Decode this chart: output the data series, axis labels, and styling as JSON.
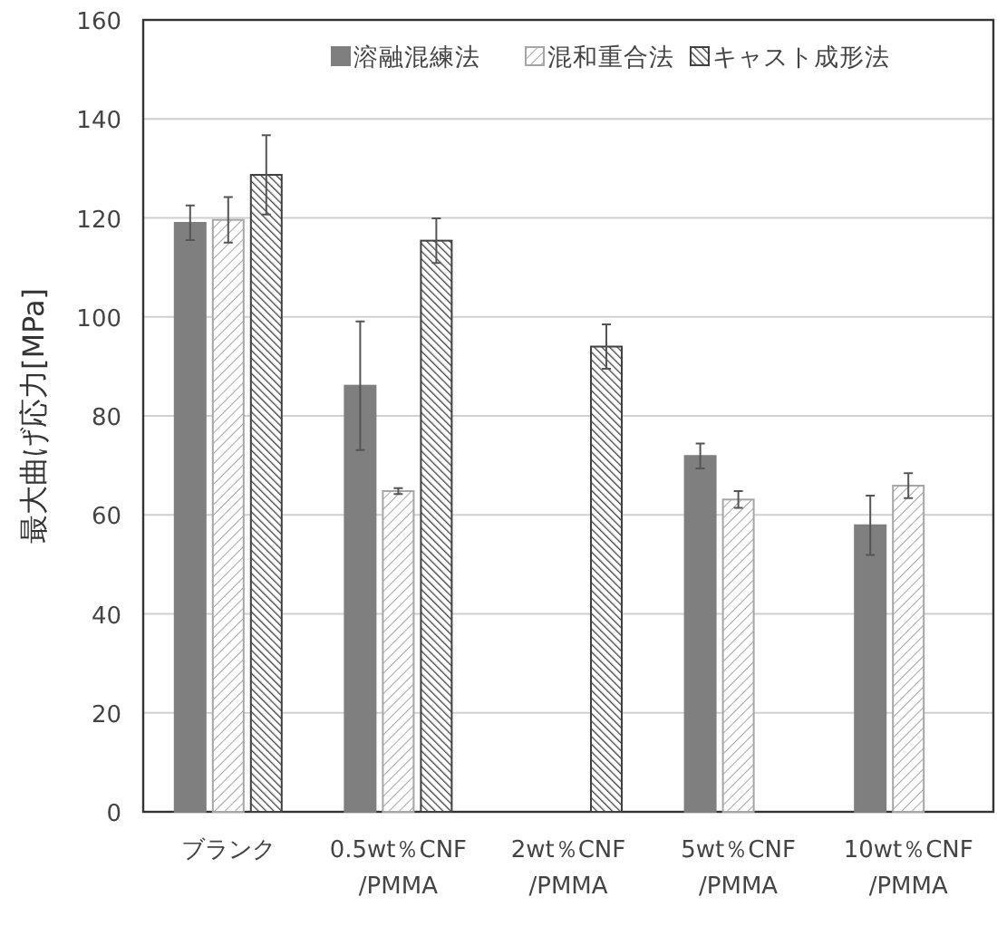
{
  "chart_data": {
    "type": "bar",
    "ylabel": "最大曲げ応力[MPa]",
    "categories": [
      "ブランク",
      "0.5wt％CNF\n/PMMA",
      "2wt％CNF\n/PMMA",
      "5wt％CNF\n/PMMA",
      "10wt％CNF\n/PMMA"
    ],
    "series": [
      {
        "name": "溶融混練法",
        "color": "#7f7f7f",
        "values": [
          119,
          86.1,
          null,
          71.9,
          57.9
        ],
        "errors": [
          3.5,
          13,
          null,
          2.5,
          6
        ]
      },
      {
        "name": "混和重合法",
        "color": "#a6a6a6",
        "values": [
          119.6,
          64.8,
          null,
          63.1,
          65.9
        ],
        "errors": [
          4.6,
          0.6,
          null,
          1.7,
          2.5
        ]
      },
      {
        "name": "キャスト成形法",
        "color": "#404040",
        "values": [
          128.7,
          115.4,
          94,
          null,
          null
        ],
        "errors": [
          8,
          4.5,
          4.5,
          null,
          null
        ]
      }
    ],
    "ylim": [
      0,
      160
    ],
    "yticks": [
      0,
      20,
      40,
      60,
      80,
      100,
      120,
      140,
      160
    ],
    "grid": "y",
    "legend": "top"
  }
}
